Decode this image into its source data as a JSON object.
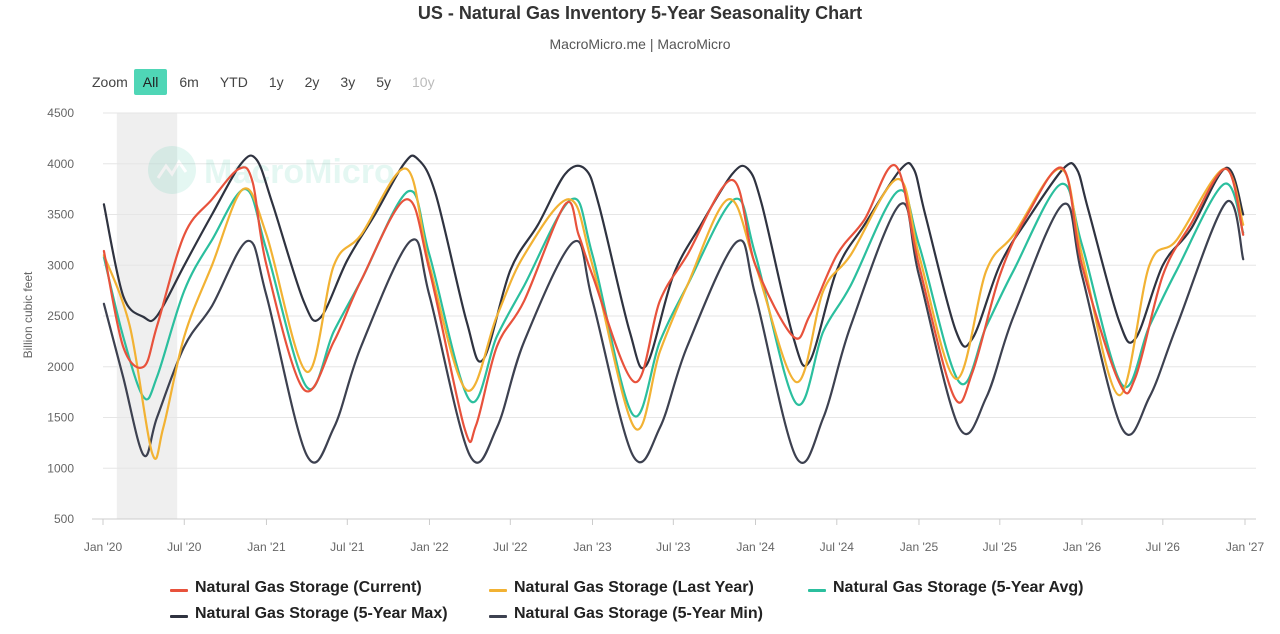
{
  "header": {
    "title": "US - Natural Gas Inventory 5-Year Seasonality Chart",
    "subtitle": "MacroMicro.me | MacroMicro"
  },
  "zoom": {
    "label": "Zoom",
    "buttons": [
      {
        "label": "All",
        "active": true,
        "disabled": false
      },
      {
        "label": "6m",
        "active": false,
        "disabled": false
      },
      {
        "label": "YTD",
        "active": false,
        "disabled": false
      },
      {
        "label": "1y",
        "active": false,
        "disabled": false
      },
      {
        "label": "2y",
        "active": false,
        "disabled": false
      },
      {
        "label": "3y",
        "active": false,
        "disabled": false
      },
      {
        "label": "5y",
        "active": false,
        "disabled": false
      },
      {
        "label": "10y",
        "active": false,
        "disabled": true
      }
    ]
  },
  "watermark": "MacroMicro",
  "chart_data": {
    "type": "line",
    "title": "US - Natural Gas Inventory 5-Year Seasonality Chart",
    "ylabel": "Billion cubic feet",
    "ylim": [
      500,
      4500
    ],
    "yticks": [
      500,
      1000,
      1500,
      2000,
      2500,
      3000,
      3500,
      4000,
      4500
    ],
    "xlim": [
      "2020-01-01",
      "2027-01-01"
    ],
    "xticks": [
      "Jan '20",
      "Jul '20",
      "Jan '21",
      "Jul '21",
      "Jan '22",
      "Jul '22",
      "Jan '23",
      "Jul '23",
      "Jan '24",
      "Jul '24",
      "Jan '25",
      "Jul '25",
      "Jan '26",
      "Jul '26",
      "Jan '27"
    ],
    "grid": true,
    "legend_position": "bottom",
    "highlight_band": [
      "2020-02-01",
      "2020-06-15"
    ],
    "series": [
      {
        "name": "Natural Gas Storage (Current)",
        "color": "#e8523c",
        "x": [
          "2020-01-03",
          "2020-02-15",
          "2020-04-01",
          "2020-05-01",
          "2020-07-01",
          "2020-09-01",
          "2020-11-01",
          "2020-12-01",
          "2021-01-01",
          "2021-03-25",
          "2021-06-01",
          "2021-08-01",
          "2021-11-10",
          "2022-01-01",
          "2022-03-20",
          "2022-04-15",
          "2022-06-01",
          "2022-08-01",
          "2022-11-01",
          "2022-12-01",
          "2023-01-01",
          "2023-04-05",
          "2023-06-01",
          "2023-08-01",
          "2023-11-10",
          "2024-01-01",
          "2024-03-25",
          "2024-05-01",
          "2024-07-01",
          "2024-09-01",
          "2024-11-10",
          "2025-01-01",
          "2025-03-20",
          "2025-05-01",
          "2025-07-01",
          "2025-09-01",
          "2025-11-20",
          "2026-01-01",
          "2026-03-25",
          "2026-05-01",
          "2026-07-01",
          "2026-09-01",
          "2026-11-20",
          "2026-12-28"
        ],
        "values": [
          3140,
          2200,
          2000,
          2400,
          3300,
          3650,
          3950,
          3820,
          3000,
          1780,
          2250,
          2850,
          3650,
          2950,
          1400,
          1420,
          2200,
          2650,
          3600,
          3300,
          2900,
          1850,
          2650,
          3100,
          3840,
          3000,
          2300,
          2500,
          3100,
          3450,
          3980,
          3000,
          1710,
          1950,
          2900,
          3500,
          3950,
          3000,
          1850,
          1900,
          2900,
          3400,
          3950,
          3300
        ]
      },
      {
        "name": "Natural Gas Storage (Last Year)",
        "color": "#f2b233",
        "x": [
          "2020-01-03",
          "2020-03-01",
          "2020-04-20",
          "2020-05-15",
          "2020-07-01",
          "2020-09-01",
          "2020-11-10",
          "2021-01-01",
          "2021-04-01",
          "2021-06-01",
          "2021-08-01",
          "2021-11-10",
          "2022-01-01",
          "2022-03-25",
          "2022-06-01",
          "2022-08-01",
          "2022-11-10",
          "2023-01-01",
          "2023-04-05",
          "2023-06-01",
          "2023-08-01",
          "2023-11-01",
          "2024-01-01",
          "2024-04-01",
          "2024-06-01",
          "2024-08-01",
          "2024-11-15",
          "2025-01-01",
          "2025-03-25",
          "2025-06-01",
          "2025-08-01",
          "2025-11-15",
          "2026-01-01",
          "2026-03-25",
          "2026-06-01",
          "2026-08-01",
          "2026-11-15",
          "2026-12-28"
        ],
        "values": [
          3100,
          2400,
          1150,
          1400,
          2300,
          3000,
          3750,
          3300,
          1950,
          3000,
          3300,
          3950,
          3000,
          1770,
          2500,
          3100,
          3650,
          3000,
          1400,
          2150,
          2800,
          3650,
          3000,
          1850,
          2750,
          3100,
          3850,
          3100,
          1880,
          2950,
          3300,
          3950,
          3100,
          1720,
          3000,
          3250,
          3950,
          3400
        ]
      },
      {
        "name": "Natural Gas Storage (5-Year Avg)",
        "color": "#2bbf9e",
        "x": [
          "2020-01-03",
          "2020-02-15",
          "2020-04-01",
          "2020-05-01",
          "2020-07-01",
          "2020-09-01",
          "2020-11-15",
          "2021-01-01",
          "2021-04-01",
          "2021-06-01",
          "2021-08-01",
          "2021-11-15",
          "2022-01-01",
          "2022-04-01",
          "2022-06-01",
          "2022-08-01",
          "2022-11-15",
          "2023-01-01",
          "2023-04-01",
          "2023-06-01",
          "2023-08-01",
          "2023-11-15",
          "2024-01-01",
          "2024-04-01",
          "2024-06-01",
          "2024-08-01",
          "2024-11-15",
          "2025-01-01",
          "2025-04-01",
          "2025-06-01",
          "2025-08-01",
          "2025-11-15",
          "2026-01-01",
          "2026-04-01",
          "2026-06-01",
          "2026-08-01",
          "2026-11-15",
          "2026-12-28"
        ],
        "values": [
          3080,
          2300,
          1700,
          1900,
          2750,
          3250,
          3750,
          3150,
          1800,
          2350,
          2850,
          3730,
          3100,
          1670,
          2300,
          2800,
          3650,
          3100,
          1530,
          2250,
          2800,
          3650,
          3100,
          1640,
          2350,
          2800,
          3730,
          3200,
          1850,
          2400,
          2950,
          3800,
          3200,
          1820,
          2400,
          2950,
          3800,
          3320
        ]
      },
      {
        "name": "Natural Gas Storage (5-Year Max)",
        "color": "#2f3340",
        "x": [
          "2020-01-03",
          "2020-02-15",
          "2020-04-01",
          "2020-05-01",
          "2020-07-01",
          "2020-09-01",
          "2020-11-05",
          "2020-12-10",
          "2021-01-15",
          "2021-03-25",
          "2021-05-01",
          "2021-07-01",
          "2021-09-01",
          "2021-11-05",
          "2021-12-05",
          "2022-01-15",
          "2022-03-25",
          "2022-05-01",
          "2022-07-01",
          "2022-09-01",
          "2022-11-01",
          "2022-12-15",
          "2023-01-15",
          "2023-03-25",
          "2023-05-01",
          "2023-07-01",
          "2023-09-01",
          "2023-11-10",
          "2023-12-15",
          "2024-01-15",
          "2024-03-25",
          "2024-05-01",
          "2024-07-01",
          "2024-09-01",
          "2024-11-20",
          "2024-12-20",
          "2025-01-15",
          "2025-03-25",
          "2025-05-01",
          "2025-07-01",
          "2025-09-01",
          "2025-11-20",
          "2025-12-20",
          "2026-01-15",
          "2026-03-25",
          "2026-05-01",
          "2026-07-01",
          "2026-09-01",
          "2026-11-20",
          "2026-12-28"
        ],
        "values": [
          3600,
          2700,
          2490,
          2500,
          3000,
          3500,
          4000,
          4040,
          3600,
          2650,
          2480,
          3050,
          3500,
          4000,
          4050,
          3700,
          2450,
          2070,
          2950,
          3400,
          3900,
          3950,
          3600,
          2350,
          2010,
          2900,
          3400,
          3900,
          3950,
          3600,
          2300,
          2050,
          2950,
          3400,
          3940,
          3950,
          3500,
          2350,
          2280,
          3000,
          3450,
          3950,
          3950,
          3550,
          2450,
          2280,
          3000,
          3350,
          3960,
          3500
        ]
      },
      {
        "name": "Natural Gas Storage (5-Year Min)",
        "color": "#3d4150",
        "x": [
          "2020-01-03",
          "2020-02-15",
          "2020-04-01",
          "2020-05-01",
          "2020-07-01",
          "2020-09-01",
          "2020-11-20",
          "2021-01-01",
          "2021-04-01",
          "2021-06-01",
          "2021-08-01",
          "2021-11-20",
          "2022-01-01",
          "2022-04-01",
          "2022-06-01",
          "2022-08-01",
          "2022-11-20",
          "2023-01-01",
          "2023-04-01",
          "2023-06-01",
          "2023-08-01",
          "2023-11-20",
          "2024-01-01",
          "2024-04-01",
          "2024-06-01",
          "2024-08-01",
          "2024-11-20",
          "2025-01-01",
          "2025-04-01",
          "2025-06-01",
          "2025-08-01",
          "2025-11-20",
          "2026-01-01",
          "2026-04-01",
          "2026-06-01",
          "2026-08-01",
          "2026-11-20",
          "2026-12-28"
        ],
        "values": [
          2620,
          1900,
          1130,
          1500,
          2200,
          2600,
          3240,
          2700,
          1130,
          1400,
          2200,
          3240,
          2700,
          1130,
          1400,
          2250,
          3230,
          2650,
          1130,
          1400,
          2200,
          3230,
          2700,
          1110,
          1500,
          2400,
          3600,
          2900,
          1400,
          1700,
          2500,
          3600,
          2900,
          1390,
          1700,
          2400,
          3620,
          3060
        ]
      }
    ]
  }
}
